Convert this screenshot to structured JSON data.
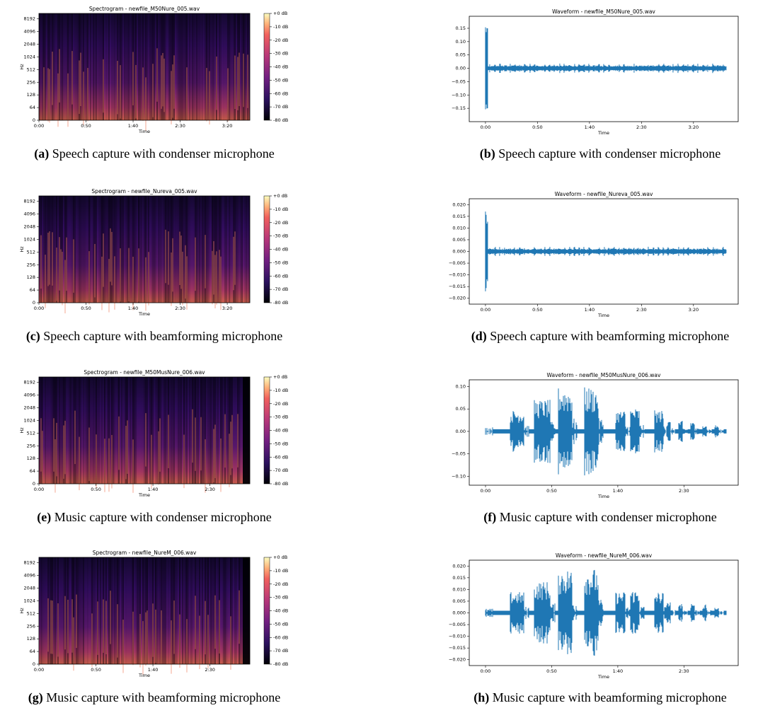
{
  "chart_data": [
    {
      "type": "spectrogram",
      "title": "Spectrogram - newfile_M50Nure_005.wav",
      "xlabel": "Time",
      "ylabel": "Hz",
      "caption_label": "(a)",
      "caption": "Speech capture with condenser microphone",
      "xlim": [
        0,
        224
      ],
      "xticks": [
        {
          "value": 0,
          "label": "0:00"
        },
        {
          "value": 50,
          "label": "0:50"
        },
        {
          "value": 100,
          "label": "1:40"
        },
        {
          "value": 150,
          "label": "2:30"
        },
        {
          "value": 200,
          "label": "3:20"
        }
      ],
      "ylim": [
        0,
        11025
      ],
      "yscale": "symlog",
      "yticks": [
        0,
        64,
        128,
        256,
        512,
        1024,
        2048,
        4096,
        8192
      ],
      "clim": [
        -80,
        0
      ],
      "cticks": [
        {
          "value": 0,
          "label": "+0 dB"
        },
        {
          "value": -10,
          "label": "-10 dB"
        },
        {
          "value": -20,
          "label": "-20 dB"
        },
        {
          "value": -30,
          "label": "-30 dB"
        },
        {
          "value": -40,
          "label": "-40 dB"
        },
        {
          "value": -50,
          "label": "-50 dB"
        },
        {
          "value": -60,
          "label": "-60 dB"
        },
        {
          "value": -70,
          "label": "-70 dB"
        },
        {
          "value": -80,
          "label": "-80 dB"
        }
      ]
    },
    {
      "type": "waveform",
      "title": "Waveform - newfile_M50Nure_005.wav",
      "xlabel": "Time",
      "caption_label": "(b)",
      "caption": "Speech capture with condenser microphone",
      "color": "#1f77b4",
      "xlim": [
        -15.6,
        243
      ],
      "xticks": [
        {
          "value": 0,
          "label": "0:00"
        },
        {
          "value": 50,
          "label": "0:50"
        },
        {
          "value": 100,
          "label": "1:40"
        },
        {
          "value": 150,
          "label": "2:30"
        },
        {
          "value": 200,
          "label": "3:20"
        }
      ],
      "ylim": [
        -0.2,
        0.195
      ],
      "yticks": [
        {
          "value": -0.15,
          "label": "−0.15"
        },
        {
          "value": -0.1,
          "label": "−0.10"
        },
        {
          "value": -0.05,
          "label": "−0.05"
        },
        {
          "value": 0,
          "label": "0.00"
        },
        {
          "value": 0.05,
          "label": "0.05"
        },
        {
          "value": 0.1,
          "label": "0.10"
        },
        {
          "value": 0.15,
          "label": "0.15"
        }
      ]
    },
    {
      "type": "spectrogram",
      "title": "Spectrogram - newfile_Nureva_005.wav",
      "xlabel": "Time",
      "ylabel": "Hz",
      "caption_label": "(c)",
      "caption": "Speech capture with beamforming microphone",
      "xlim": [
        0,
        224
      ],
      "xticks": [
        {
          "value": 0,
          "label": "0:00"
        },
        {
          "value": 50,
          "label": "0:50"
        },
        {
          "value": 100,
          "label": "1:40"
        },
        {
          "value": 150,
          "label": "2:30"
        },
        {
          "value": 200,
          "label": "3:20"
        }
      ],
      "ylim": [
        0,
        11025
      ],
      "yscale": "symlog",
      "yticks": [
        0,
        64,
        128,
        256,
        512,
        1024,
        2048,
        4096,
        8192
      ],
      "clim": [
        -80,
        0
      ],
      "cticks": [
        {
          "value": 0,
          "label": "+0 dB"
        },
        {
          "value": -10,
          "label": "-10 dB"
        },
        {
          "value": -20,
          "label": "-20 dB"
        },
        {
          "value": -30,
          "label": "-30 dB"
        },
        {
          "value": -40,
          "label": "-40 dB"
        },
        {
          "value": -50,
          "label": "-50 dB"
        },
        {
          "value": -60,
          "label": "-60 dB"
        },
        {
          "value": -70,
          "label": "-70 dB"
        },
        {
          "value": -80,
          "label": "-80 dB"
        }
      ]
    },
    {
      "type": "waveform",
      "title": "Waveform - newfile_Nureva_005.wav",
      "xlabel": "Time",
      "caption_label": "(d)",
      "caption": "Speech capture with beamforming microphone",
      "color": "#1f77b4",
      "xlim": [
        -15.6,
        243
      ],
      "xticks": [
        {
          "value": 0,
          "label": "0:00"
        },
        {
          "value": 50,
          "label": "0:50"
        },
        {
          "value": 100,
          "label": "1:40"
        },
        {
          "value": 150,
          "label": "2:30"
        },
        {
          "value": 200,
          "label": "3:20"
        }
      ],
      "ylim": [
        -0.0225,
        0.0225
      ],
      "yticks": [
        {
          "value": -0.02,
          "label": "−0.020"
        },
        {
          "value": -0.015,
          "label": "−0.015"
        },
        {
          "value": -0.01,
          "label": "−0.010"
        },
        {
          "value": -0.005,
          "label": "−0.005"
        },
        {
          "value": 0,
          "label": "0.000"
        },
        {
          "value": 0.005,
          "label": "0.005"
        },
        {
          "value": 0.01,
          "label": "0.010"
        },
        {
          "value": 0.015,
          "label": "0.015"
        },
        {
          "value": 0.02,
          "label": "0.020"
        }
      ]
    },
    {
      "type": "spectrogram",
      "title": "Spectrogram - newfile_M50MusNure_006.wav",
      "xlabel": "Time",
      "ylabel": "Hz",
      "caption_label": "(e)",
      "caption": "Music capture with condenser microphone",
      "xlim": [
        0,
        185
      ],
      "xticks": [
        {
          "value": 0,
          "label": "0:00"
        },
        {
          "value": 50,
          "label": "0:50"
        },
        {
          "value": 100,
          "label": "1:40"
        },
        {
          "value": 150,
          "label": "2:30"
        }
      ],
      "ylim": [
        0,
        11025
      ],
      "yscale": "symlog",
      "yticks": [
        0,
        64,
        128,
        256,
        512,
        1024,
        2048,
        4096,
        8192
      ],
      "clim": [
        -80,
        0
      ],
      "cticks": [
        {
          "value": 0,
          "label": "+0 dB"
        },
        {
          "value": -10,
          "label": "-10 dB"
        },
        {
          "value": -20,
          "label": "-20 dB"
        },
        {
          "value": -30,
          "label": "-30 dB"
        },
        {
          "value": -40,
          "label": "-40 dB"
        },
        {
          "value": -50,
          "label": "-50 dB"
        },
        {
          "value": -60,
          "label": "-60 dB"
        },
        {
          "value": -70,
          "label": "-70 dB"
        },
        {
          "value": -80,
          "label": "-80 dB"
        }
      ]
    },
    {
      "type": "waveform",
      "title": "Waveform - newfile_M50MusNure_006.wav",
      "xlabel": "Time",
      "caption_label": "(f)",
      "caption": "Music capture with condenser microphone",
      "color": "#1f77b4",
      "xlim": [
        -12.3,
        191
      ],
      "xticks": [
        {
          "value": 0,
          "label": "0:00"
        },
        {
          "value": 50,
          "label": "0:50"
        },
        {
          "value": 100,
          "label": "1:40"
        },
        {
          "value": 150,
          "label": "2:30"
        }
      ],
      "ylim": [
        -0.12,
        0.115
      ],
      "yticks": [
        {
          "value": -0.1,
          "label": "−0.10"
        },
        {
          "value": -0.05,
          "label": "−0.05"
        },
        {
          "value": 0,
          "label": "0.00"
        },
        {
          "value": 0.05,
          "label": "0.05"
        },
        {
          "value": 0.1,
          "label": "0.10"
        }
      ]
    },
    {
      "type": "spectrogram",
      "title": "Spectrogram - newfile_NureM_006.wav",
      "xlabel": "Time",
      "ylabel": "Hz",
      "caption_label": "(g)",
      "caption": "Music capture with beamforming microphone",
      "xlim": [
        0,
        185
      ],
      "xticks": [
        {
          "value": 0,
          "label": "0:00"
        },
        {
          "value": 50,
          "label": "0:50"
        },
        {
          "value": 100,
          "label": "1:40"
        },
        {
          "value": 150,
          "label": "2:30"
        }
      ],
      "ylim": [
        0,
        11025
      ],
      "yscale": "symlog",
      "yticks": [
        0,
        64,
        128,
        256,
        512,
        1024,
        2048,
        4096,
        8192
      ],
      "clim": [
        -80,
        0
      ],
      "cticks": [
        {
          "value": 0,
          "label": "+0 dB"
        },
        {
          "value": -10,
          "label": "-10 dB"
        },
        {
          "value": -20,
          "label": "-20 dB"
        },
        {
          "value": -30,
          "label": "-30 dB"
        },
        {
          "value": -40,
          "label": "-40 dB"
        },
        {
          "value": -50,
          "label": "-50 dB"
        },
        {
          "value": -60,
          "label": "-60 dB"
        },
        {
          "value": -70,
          "label": "-70 dB"
        },
        {
          "value": -80,
          "label": "-80 dB"
        }
      ]
    },
    {
      "type": "waveform",
      "title": "Waveform - newfile_NureM_006.wav",
      "xlabel": "Time",
      "caption_label": "(h)",
      "caption": "Music capture with beamforming microphone",
      "color": "#1f77b4",
      "xlim": [
        -12.3,
        191
      ],
      "xticks": [
        {
          "value": 0,
          "label": "0:00"
        },
        {
          "value": 50,
          "label": "0:50"
        },
        {
          "value": 100,
          "label": "1:40"
        },
        {
          "value": 150,
          "label": "2:30"
        }
      ],
      "ylim": [
        -0.0225,
        0.0225
      ],
      "yticks": [
        {
          "value": -0.02,
          "label": "−0.020"
        },
        {
          "value": -0.015,
          "label": "−0.015"
        },
        {
          "value": -0.01,
          "label": "−0.010"
        },
        {
          "value": -0.005,
          "label": "−0.005"
        },
        {
          "value": 0,
          "label": "0.000"
        },
        {
          "value": 0.005,
          "label": "0.005"
        },
        {
          "value": 0.01,
          "label": "0.010"
        },
        {
          "value": 0.015,
          "label": "0.015"
        },
        {
          "value": 0.02,
          "label": "0.020"
        }
      ]
    }
  ]
}
